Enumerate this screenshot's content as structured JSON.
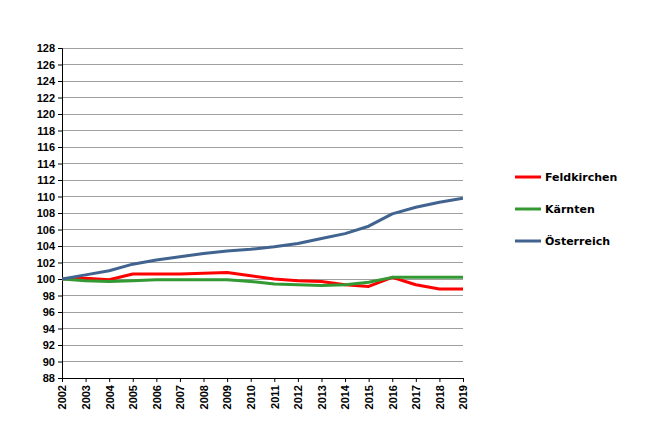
{
  "chart_data": {
    "type": "line",
    "categories": [
      "2002",
      "2003",
      "2004",
      "2005",
      "2006",
      "2007",
      "2008",
      "2009",
      "2010",
      "2011",
      "2012",
      "2013",
      "2014",
      "2015",
      "2016",
      "2017",
      "2018",
      "2019"
    ],
    "series": [
      {
        "name": "Feldkirchen",
        "color": "#ff0000",
        "values": [
          100,
          100.1,
          99.9,
          100.6,
          100.6,
          100.6,
          100.7,
          100.8,
          100.4,
          100.0,
          99.8,
          99.7,
          99.3,
          99.1,
          100.2,
          99.3,
          98.8,
          98.8
        ]
      },
      {
        "name": "Kärnten",
        "color": "#339933",
        "values": [
          100,
          99.8,
          99.7,
          99.8,
          99.9,
          99.9,
          99.9,
          99.9,
          99.7,
          99.4,
          99.3,
          99.2,
          99.3,
          99.6,
          100.2,
          100.2,
          100.2,
          100.2
        ]
      },
      {
        "name": "Österreich",
        "color": "#41638f",
        "values": [
          100,
          100.5,
          101.0,
          101.8,
          102.3,
          102.7,
          103.1,
          103.4,
          103.6,
          103.9,
          104.3,
          104.9,
          105.5,
          106.4,
          107.9,
          108.7,
          109.3,
          109.8
        ]
      }
    ],
    "ylim": [
      88,
      128
    ],
    "yticks": [
      88,
      90,
      92,
      94,
      96,
      98,
      100,
      102,
      104,
      106,
      108,
      110,
      112,
      114,
      116,
      118,
      120,
      122,
      124,
      126,
      128
    ],
    "grid": true,
    "legend": "right"
  }
}
